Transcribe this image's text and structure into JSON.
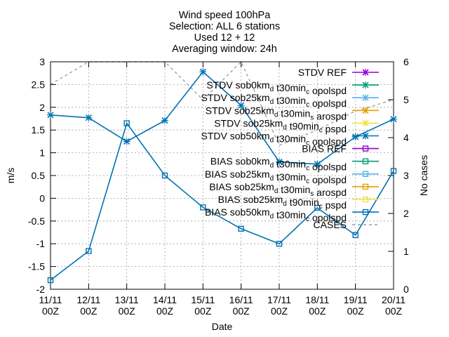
{
  "chart_data": {
    "type": "line",
    "title_lines": [
      "Wind speed 100hPa",
      "Selection: ALL      6 stations",
      "Used 12 + 12",
      "Averaging window: 24h"
    ],
    "xlabel": "Date",
    "ylabel": "m/s",
    "y2label": "No cases",
    "x": [
      "11/11 00Z",
      "12/11 00Z",
      "13/11 00Z",
      "14/11 00Z",
      "15/11 00Z",
      "16/11 00Z",
      "17/11 00Z",
      "18/11 00Z",
      "19/11 00Z",
      "20/11 00Z"
    ],
    "ylim": [
      -2,
      3
    ],
    "yticks": [
      "-2",
      "-1.5",
      "-1",
      "-0.5",
      "0",
      "0.5",
      "1",
      "1.5",
      "2",
      "2.5",
      "3"
    ],
    "y2lim": [
      0,
      6
    ],
    "y2ticks": [
      "0",
      "1",
      "2",
      "3",
      "4",
      "5",
      "6"
    ],
    "grid": true,
    "legend_position": "top-right",
    "legend": [
      {
        "label": "STDV REF",
        "color": "#9400d3",
        "marker": "x"
      },
      {
        "label": "STDV sob0km_d t30min_c opolspd",
        "color": "#009e73",
        "marker": "x"
      },
      {
        "label": "STDV sob25km_d t30min_c opolspd",
        "color": "#56b4e9",
        "marker": "x"
      },
      {
        "label": "STDV sob25km_d t30min_s arospd",
        "color": "#e69f00",
        "marker": "x"
      },
      {
        "label": "STDV sob25km_d t90min_c pspd",
        "color": "#f0e442",
        "marker": "x"
      },
      {
        "label": "STDV sob50km_d t30min_c opolspd",
        "color": "#0072b2",
        "marker": "x"
      },
      {
        "label": "BIAS REF",
        "color": "#9400d3",
        "marker": "square"
      },
      {
        "label": "BIAS sob0km_d t30min_c opolspd",
        "color": "#009e73",
        "marker": "square"
      },
      {
        "label": "BIAS sob25km_d t30min_c opolspd",
        "color": "#56b4e9",
        "marker": "square"
      },
      {
        "label": "BIAS sob25km_d t30min_s arospd",
        "color": "#e69f00",
        "marker": "square"
      },
      {
        "label": "BIAS sob25km_d t90min_c pspd",
        "color": "#f0e442",
        "marker": "square"
      },
      {
        "label": "BIAS sob50km_d t30min_c opolspd",
        "color": "#0072b2",
        "marker": "square"
      },
      {
        "label": "CASES",
        "color": "#a0a0a0",
        "marker": "dash"
      }
    ],
    "series": [
      {
        "name": "STDV",
        "axis": "y",
        "marker": "x",
        "color": "#0072b2",
        "values": [
          1.83,
          1.77,
          1.25,
          1.71,
          2.78,
          2.04,
          0.8,
          0.75,
          1.35,
          1.74
        ]
      },
      {
        "name": "BIAS",
        "axis": "y",
        "marker": "square",
        "color": "#0072b2",
        "values": [
          -1.8,
          -1.16,
          1.65,
          0.5,
          -0.2,
          -0.67,
          -1.0,
          -0.21,
          -0.81,
          0.6
        ]
      },
      {
        "name": "CASES",
        "axis": "y2",
        "marker": "none",
        "color": "#a0a0a0",
        "values": [
          5.4,
          6,
          6,
          6,
          5,
          6,
          3.8,
          4.2,
          4.7,
          5
        ]
      }
    ]
  }
}
